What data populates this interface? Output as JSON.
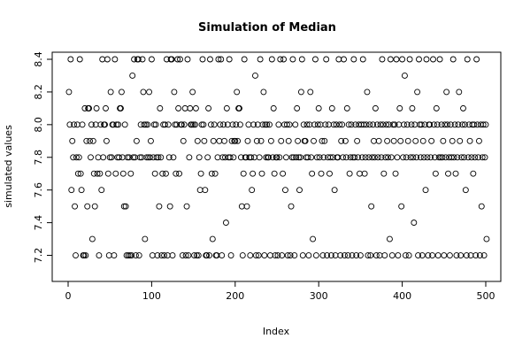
{
  "chart_data": {
    "type": "scatter",
    "title": "Simulation of Median",
    "xlabel": "Index",
    "ylabel": "simulated values",
    "xlim": [
      0,
      500
    ],
    "ylim": [
      7.1,
      8.4
    ],
    "x_ticks": [
      0,
      100,
      200,
      300,
      400,
      500
    ],
    "y_ticks": [
      7.2,
      7.4,
      7.6,
      7.8,
      8.0,
      8.2,
      8.4
    ],
    "x_tick_labels": [
      "0",
      "100",
      "200",
      "300",
      "400",
      "500"
    ],
    "y_tick_labels": [
      "7.2",
      "7.4",
      "7.6",
      "7.8",
      "8.0",
      "8.2",
      "8.4"
    ],
    "marker": "open-circle",
    "grid": false,
    "legend": "none",
    "n": 500,
    "y": [
      8.2,
      8.0,
      8.4,
      7.6,
      7.9,
      7.8,
      8.0,
      7.5,
      7.2,
      7.8,
      8.0,
      7.7,
      7.8,
      8.4,
      7.7,
      7.6,
      8.0,
      7.2,
      7.2,
      8.1,
      7.2,
      7.9,
      7.5,
      8.1,
      8.1,
      7.9,
      7.8,
      8.0,
      7.3,
      7.9,
      7.7,
      7.5,
      8.0,
      8.1,
      7.7,
      7.8,
      7.2,
      7.7,
      8.0,
      7.6,
      8.4,
      7.8,
      8.0,
      8.0,
      8.1,
      7.9,
      8.4,
      7.7,
      7.2,
      7.8,
      8.2,
      7.8,
      8.0,
      8.0,
      7.2,
      8.4,
      7.7,
      8.0,
      7.8,
      8.0,
      7.8,
      8.1,
      8.1,
      8.2,
      7.8,
      7.7,
      7.5,
      8.0,
      7.5,
      7.2,
      7.8,
      7.2,
      7.8,
      7.2,
      7.7,
      7.2,
      8.3,
      7.8,
      8.4,
      7.8,
      7.2,
      7.9,
      8.4,
      8.4,
      7.2,
      7.8,
      8.0,
      7.8,
      8.4,
      8.2,
      8.0,
      7.3,
      8.0,
      7.8,
      8.0,
      7.8,
      8.2,
      7.8,
      7.9,
      8.4,
      7.2,
      7.8,
      8.0,
      7.7,
      8.0,
      7.8,
      7.2,
      7.8,
      7.5,
      8.1,
      7.8,
      7.2,
      7.7,
      8.0,
      7.2,
      8.0,
      7.7,
      8.4,
      7.2,
      8.0,
      7.8,
      7.5,
      8.4,
      8.4,
      7.2,
      7.8,
      8.2,
      8.0,
      7.7,
      8.0,
      8.4,
      8.1,
      7.7,
      8.4,
      8.0,
      8.0,
      7.2,
      7.9,
      8.0,
      8.1,
      7.2,
      7.5,
      8.4,
      7.2,
      7.8,
      8.1,
      8.0,
      8.0,
      8.2,
      8.0,
      7.2,
      8.0,
      8.1,
      7.2,
      7.9,
      7.2,
      7.8,
      7.6,
      7.7,
      8.0,
      8.4,
      8.0,
      7.9,
      7.6,
      7.2,
      7.2,
      7.8,
      8.1,
      7.2,
      8.4,
      8.0,
      7.7,
      7.3,
      7.9,
      8.0,
      7.7,
      7.2,
      7.2,
      7.8,
      8.4,
      7.9,
      8.0,
      8.4,
      7.2,
      7.8,
      8.0,
      7.9,
      7.8,
      7.4,
      8.1,
      8.0,
      7.8,
      8.4,
      7.8,
      7.2,
      7.9,
      8.0,
      7.8,
      7.9,
      7.9,
      8.0,
      8.2,
      7.9,
      8.1,
      8.1,
      8.0,
      7.8,
      7.5,
      7.2,
      7.7,
      8.4,
      7.8,
      7.8,
      7.5,
      7.9,
      8.0,
      7.8,
      7.2,
      7.8,
      7.6,
      7.7,
      8.0,
      7.8,
      8.3,
      7.2,
      7.9,
      8.0,
      7.2,
      7.8,
      8.4,
      7.9,
      7.7,
      8.0,
      8.2,
      7.2,
      8.0,
      7.8,
      8.0,
      7.8,
      7.8,
      8.0,
      7.2,
      7.9,
      8.4,
      7.8,
      8.1,
      7.7,
      7.2,
      7.8,
      7.8,
      7.2,
      8.0,
      7.8,
      8.4,
      7.9,
      7.2,
      7.7,
      8.4,
      8.0,
      7.6,
      7.8,
      8.0,
      7.2,
      7.9,
      8.0,
      7.2,
      7.5,
      7.8,
      8.4,
      7.8,
      7.2,
      8.0,
      7.8,
      8.1,
      7.9,
      7.8,
      7.6,
      7.8,
      8.2,
      8.4,
      7.2,
      8.0,
      7.9,
      7.9,
      7.8,
      8.0,
      7.8,
      7.2,
      8.0,
      8.2,
      7.8,
      7.7,
      7.3,
      7.9,
      8.0,
      8.4,
      7.2,
      7.8,
      8.0,
      8.1,
      7.8,
      8.0,
      7.7,
      7.9,
      7.2,
      7.8,
      7.9,
      8.0,
      8.4,
      7.2,
      7.8,
      8.0,
      7.7,
      7.8,
      7.2,
      8.1,
      7.8,
      8.0,
      7.6,
      7.2,
      8.0,
      7.8,
      7.8,
      8.4,
      8.0,
      7.2,
      7.9,
      8.0,
      7.8,
      8.4,
      7.2,
      7.9,
      7.8,
      8.1,
      7.2,
      8.0,
      7.7,
      7.8,
      8.0,
      7.2,
      7.8,
      8.4,
      7.8,
      8.0,
      7.2,
      7.9,
      7.8,
      8.0,
      7.7,
      7.2,
      8.0,
      7.8,
      8.4,
      8.0,
      7.7,
      7.8,
      8.0,
      8.2,
      7.2,
      7.8,
      8.0,
      7.2,
      7.5,
      7.8,
      8.0,
      7.9,
      7.8,
      8.1,
      7.2,
      8.0,
      7.8,
      7.9,
      7.2,
      8.0,
      7.8,
      8.4,
      8.0,
      7.7,
      7.2,
      7.8,
      8.0,
      7.9,
      7.8,
      8.0,
      7.3,
      8.4,
      7.8,
      7.2,
      8.0,
      7.9,
      8.0,
      7.7,
      8.4,
      7.8,
      7.2,
      8.0,
      8.1,
      7.9,
      7.5,
      8.4,
      7.8,
      8.0,
      8.3,
      7.2,
      7.8,
      8.0,
      7.9,
      7.2,
      8.4,
      7.8,
      8.0,
      8.1,
      7.8,
      7.4,
      8.0,
      7.9,
      7.8,
      8.2,
      7.2,
      8.4,
      8.0,
      7.8,
      8.0,
      7.2,
      7.9,
      7.8,
      8.0,
      7.6,
      8.4,
      7.8,
      7.2,
      8.0,
      8.0,
      7.8,
      7.9,
      7.2,
      8.4,
      8.0,
      7.8,
      7.7,
      8.1,
      8.0,
      7.2,
      7.8,
      8.4,
      7.8,
      8.0,
      7.8,
      7.9,
      7.2,
      8.0,
      7.8,
      8.2,
      8.0,
      7.7,
      7.8,
      7.2,
      8.0,
      7.8,
      7.9,
      8.4,
      7.8,
      8.0,
      7.7,
      7.2,
      7.8,
      8.0,
      8.2,
      7.9,
      7.2,
      7.8,
      8.0,
      8.1,
      7.8,
      8.0,
      7.6,
      7.2,
      8.4,
      7.8,
      8.0,
      7.9,
      7.2,
      7.8,
      8.0,
      7.7,
      8.0,
      7.8,
      7.2,
      8.4,
      8.0,
      7.8,
      7.9,
      7.2,
      8.0,
      7.5,
      7.8,
      8.0,
      7.2,
      7.8,
      8.0,
      7.3
    ]
  }
}
